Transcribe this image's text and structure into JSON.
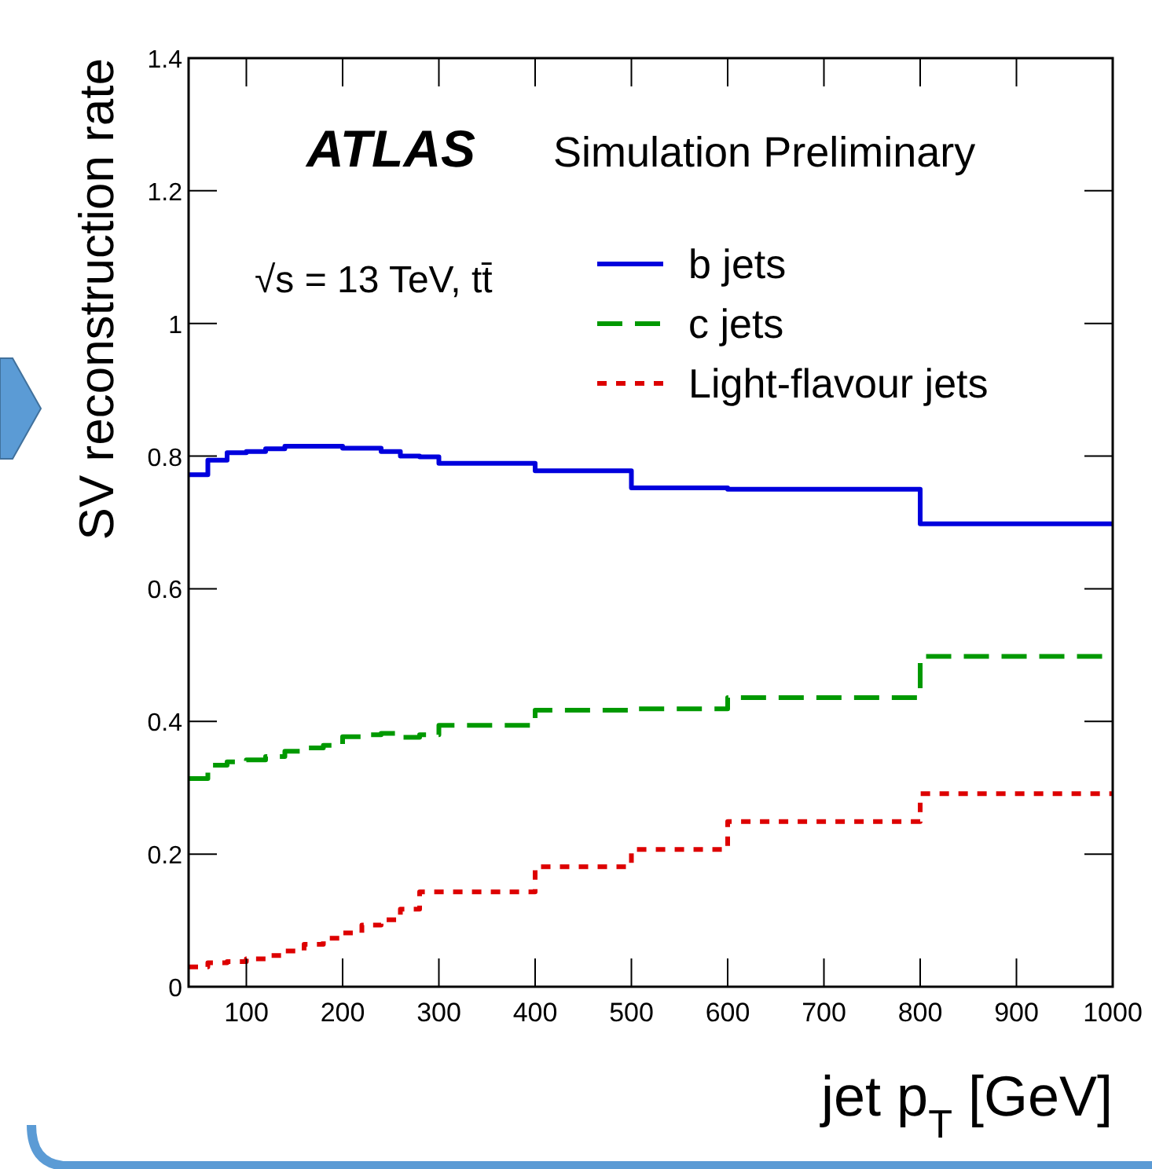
{
  "chart_data": {
    "type": "histogram",
    "xlabel": "jet p$_{T}$ [GeV]",
    "ylabel": "SV reconstruction rate",
    "annotations": [
      "ATLAS",
      "Simulation Preliminary",
      "√s = 13 TeV, tt̄"
    ],
    "bins": [
      40,
      60,
      80,
      100,
      120,
      140,
      160,
      180,
      200,
      220,
      240,
      260,
      280,
      300,
      400,
      500,
      600,
      800,
      1000
    ],
    "series": [
      {
        "name": "b jets",
        "color": "#0000dd",
        "line_style": "solid",
        "values": [
          0.772,
          0.794,
          0.805,
          0.807,
          0.811,
          0.815,
          0.815,
          0.815,
          0.812,
          0.812,
          0.807,
          0.8,
          0.799,
          0.789,
          0.778,
          0.752,
          0.75,
          0.698
        ]
      },
      {
        "name": "c jets",
        "color": "#009900",
        "line_style": "dashed",
        "values": [
          0.314,
          0.334,
          0.339,
          0.342,
          0.347,
          0.355,
          0.36,
          0.364,
          0.377,
          0.38,
          0.382,
          0.376,
          0.38,
          0.394,
          0.417,
          0.419,
          0.436,
          0.498
        ]
      },
      {
        "name": "Light-flavour jets",
        "color": "#dd0000",
        "line_style": "dotted",
        "values": [
          0.03,
          0.036,
          0.038,
          0.042,
          0.047,
          0.054,
          0.064,
          0.073,
          0.081,
          0.093,
          0.101,
          0.117,
          0.143,
          0.143,
          0.181,
          0.207,
          0.249,
          0.291
        ]
      }
    ],
    "xlim": [
      40,
      1000
    ],
    "xticks": [
      100,
      200,
      300,
      400,
      500,
      600,
      700,
      800,
      900,
      1000
    ],
    "ylim": [
      0,
      1.4
    ],
    "yticks": [
      0,
      0.2,
      0.4,
      0.6,
      0.8,
      1,
      1.2,
      1.4
    ],
    "legend": "top right",
    "grid": false
  }
}
